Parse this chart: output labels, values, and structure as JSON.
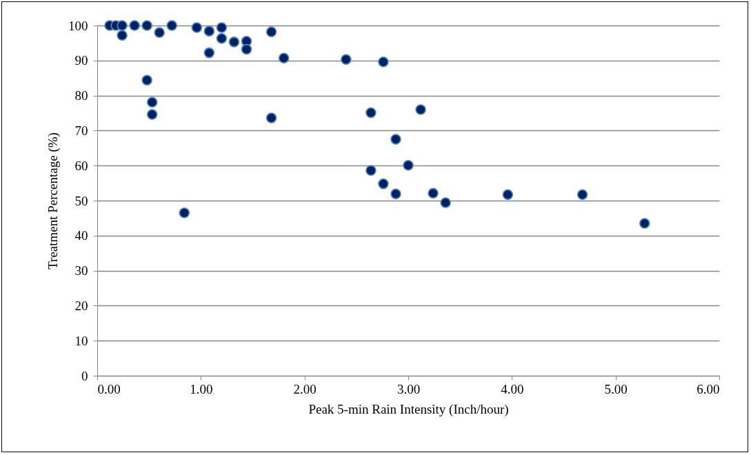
{
  "chart_data": {
    "type": "scatter",
    "xlabel": "Peak 5-min Rain Intensity (Inch/hour)",
    "ylabel": "Treatment Percentage (%)",
    "xlim": [
      0,
      6
    ],
    "xticks": [
      {
        "value": 0,
        "label": "0.00"
      },
      {
        "value": 1,
        "label": "1.00"
      },
      {
        "value": 2,
        "label": "2.00"
      },
      {
        "value": 3,
        "label": "3.00"
      },
      {
        "value": 4,
        "label": "4.00"
      },
      {
        "value": 5,
        "label": "5.00"
      },
      {
        "value": 6,
        "label": "6.00"
      }
    ],
    "ylim": [
      0,
      100
    ],
    "yticks": [
      0,
      10,
      20,
      30,
      40,
      50,
      60,
      70,
      80,
      90,
      100
    ],
    "grid": "y",
    "marker": "circle",
    "series": [
      {
        "color": "#002060",
        "x": [
          0.12,
          0.18,
          0.24,
          0.24,
          0.36,
          0.48,
          0.6,
          0.72,
          0.96,
          1.08,
          1.08,
          1.2,
          1.2,
          1.32,
          1.44,
          1.44,
          1.68,
          1.8,
          2.4,
          2.76,
          0.48,
          0.53,
          0.53,
          1.68,
          0.84,
          2.64,
          3.12,
          2.88,
          2.64,
          3.0,
          2.76,
          2.88,
          3.24,
          3.36,
          3.96,
          4.68,
          5.28
        ],
        "values": [
          100,
          100,
          100,
          97.2,
          100,
          100,
          98,
          100,
          99.4,
          98.4,
          92.2,
          99.4,
          96.3,
          95.3,
          95.5,
          93.2,
          98.2,
          90.7,
          90.3,
          89.6,
          84.4,
          78.1,
          74.6,
          73.6,
          46.5,
          75.1,
          76,
          67.5,
          58.6,
          60.1,
          54.8,
          51.9,
          52.1,
          49.4,
          51.7,
          51.7,
          43.5
        ]
      }
    ]
  }
}
